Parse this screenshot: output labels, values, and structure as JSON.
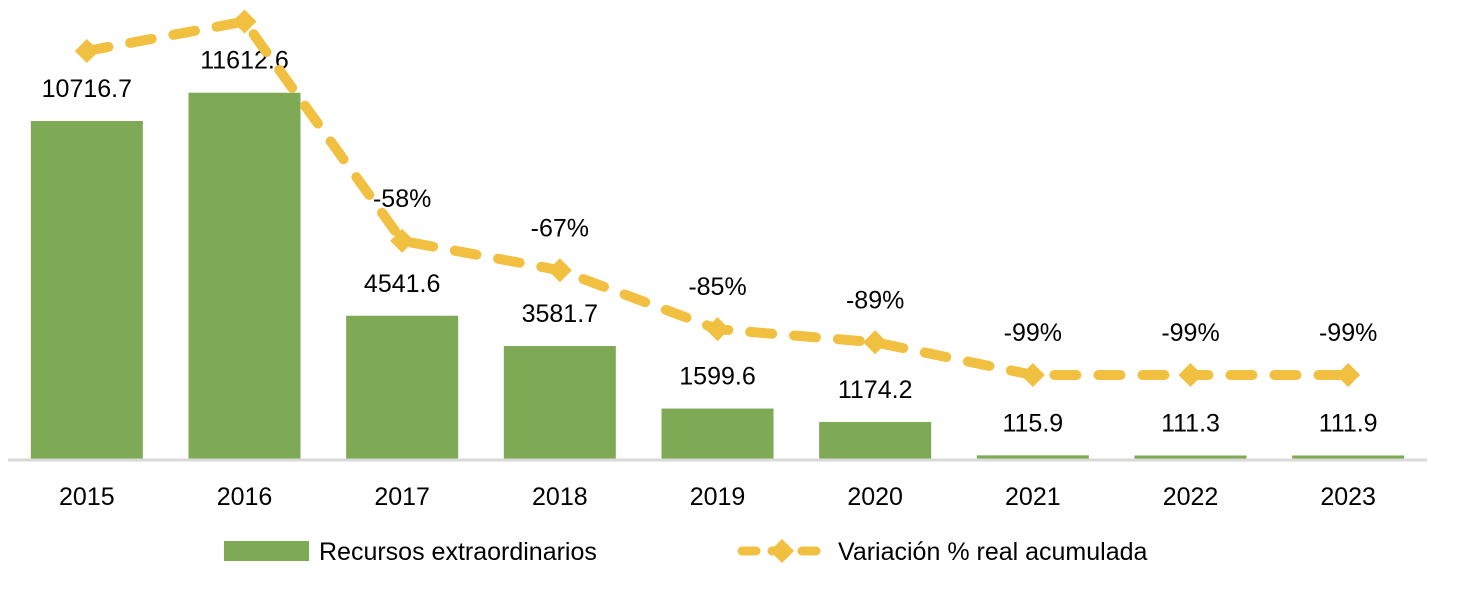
{
  "chart_data": {
    "type": "bar",
    "title": "",
    "xlabel": "",
    "ylabel": "",
    "categories": [
      "2015",
      "2016",
      "2017",
      "2018",
      "2019",
      "2020",
      "2021",
      "2022",
      "2023"
    ],
    "series": [
      {
        "name": "Recursos extraordinarios",
        "type": "bar",
        "color": "#7faa55",
        "values": [
          10716.7,
          11612.6,
          4541.6,
          3581.7,
          1599.6,
          1174.2,
          115.9,
          111.3,
          111.9
        ],
        "labels": [
          "10716.7",
          "11612.6",
          "4541.6",
          "3581.7",
          "1599.6",
          "1174.2",
          "115.9",
          "111.3",
          "111.9"
        ]
      },
      {
        "name": "Variación % real acumulada",
        "type": "line",
        "style": "dashed",
        "marker": "diamond",
        "color": "#f2c040",
        "values": [
          0,
          9,
          -58,
          -67,
          -85,
          -89,
          -99,
          -99,
          -99
        ],
        "labels": [
          "",
          "",
          "-58%",
          "-67%",
          "-85%",
          "-89%",
          "-99%",
          "-99%",
          "-99%"
        ]
      }
    ],
    "ylim": [
      0,
      12000
    ],
    "y2lim": [
      -110,
      15
    ],
    "grid": false,
    "legend": "bottom"
  }
}
